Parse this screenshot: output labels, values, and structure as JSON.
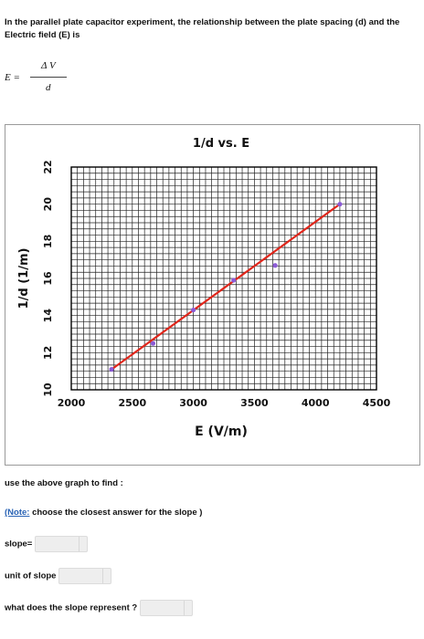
{
  "intro": {
    "text": "In the parallel plate capacitor experiment, the relationship between the plate spacing (d) and the Electric field (E) is"
  },
  "formula": {
    "lhs": "E =",
    "numerator": "Δ V",
    "denominator": "d"
  },
  "chart_data": {
    "type": "scatter",
    "title": "1/d vs. E",
    "xlabel": "E (V/m)",
    "ylabel": "1/d (1/m)",
    "xlim": [
      2000,
      4500
    ],
    "ylim": [
      10,
      22
    ],
    "x_ticks": [
      "2000",
      "2500",
      "3000",
      "3500",
      "4000",
      "4500"
    ],
    "y_ticks": [
      "10",
      "12",
      "14",
      "16",
      "18",
      "20",
      "22"
    ],
    "grid": true,
    "series": [
      {
        "x": [
          2330,
          2670,
          3000,
          3330,
          3670,
          4200
        ],
        "y": [
          11.1,
          12.5,
          14.3,
          15.9,
          16.7,
          20.0
        ],
        "marker_color": "#8c5bd6",
        "line_color": "#e0261b"
      }
    ],
    "fit_line": {
      "x": [
        2330,
        4200
      ],
      "y": [
        11.1,
        20.0
      ]
    }
  },
  "questions": {
    "find_text": "use the above graph to find :",
    "note_label": "(Note:",
    "note_text": " choose the closest answer for the slope )",
    "slope_label": "slope=",
    "unit_label": "unit of slope",
    "represent_label": "what does the slope represent ?"
  }
}
